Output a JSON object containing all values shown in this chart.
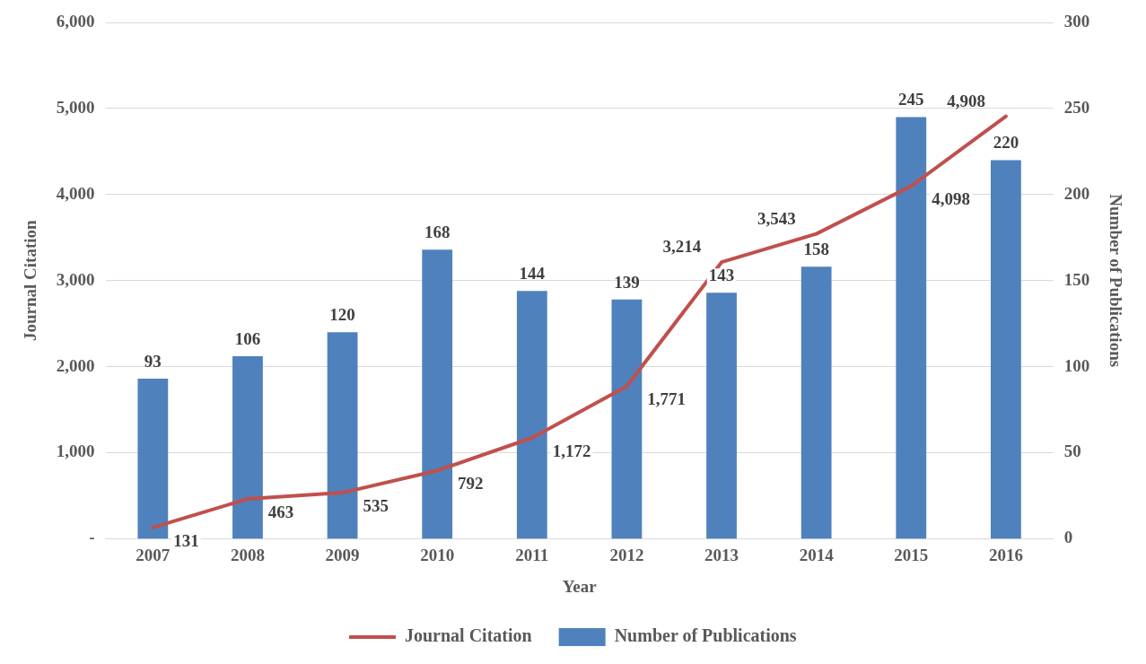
{
  "chart_data": {
    "type": "bar",
    "xlabel": "Year",
    "ylabel": "Journal Citation",
    "y2label": "Number of Publications",
    "categories": [
      "2007",
      "2008",
      "2009",
      "2010",
      "2011",
      "2012",
      "2013",
      "2014",
      "2015",
      "2016"
    ],
    "series": [
      {
        "name": "Number of Publications",
        "axis": "y2",
        "color": "#4f81bd",
        "values": [
          93,
          106,
          120,
          168,
          144,
          139,
          143,
          158,
          245,
          220
        ],
        "value_labels": [
          "93",
          "106",
          "120",
          "168",
          "144",
          "139",
          "143",
          "158",
          "245",
          "220"
        ]
      },
      {
        "name": "Journal Citation",
        "type": "line",
        "axis": "y",
        "color": "#c0504d",
        "values": [
          131,
          463,
          535,
          792,
          1172,
          1771,
          3214,
          3543,
          4098,
          4908
        ],
        "value_labels": [
          "131",
          "463",
          "535",
          "792",
          "1,172",
          "1,771",
          "3,214",
          "3,543",
          "4,098",
          "4,908"
        ]
      }
    ],
    "ylim": [
      0,
      6000
    ],
    "yticks": [
      {
        "value": 0,
        "label": "-"
      },
      {
        "value": 1000,
        "label": "1,000"
      },
      {
        "value": 2000,
        "label": "2,000"
      },
      {
        "value": 3000,
        "label": "3,000"
      },
      {
        "value": 4000,
        "label": "4,000"
      },
      {
        "value": 5000,
        "label": "5,000"
      },
      {
        "value": 6000,
        "label": "6,000"
      }
    ],
    "y2lim": [
      0,
      300
    ],
    "y2ticks": [
      0,
      50,
      100,
      150,
      200,
      250,
      300
    ],
    "grid": "y",
    "legend": "bottom",
    "marker": "none",
    "line_style": "solid"
  }
}
